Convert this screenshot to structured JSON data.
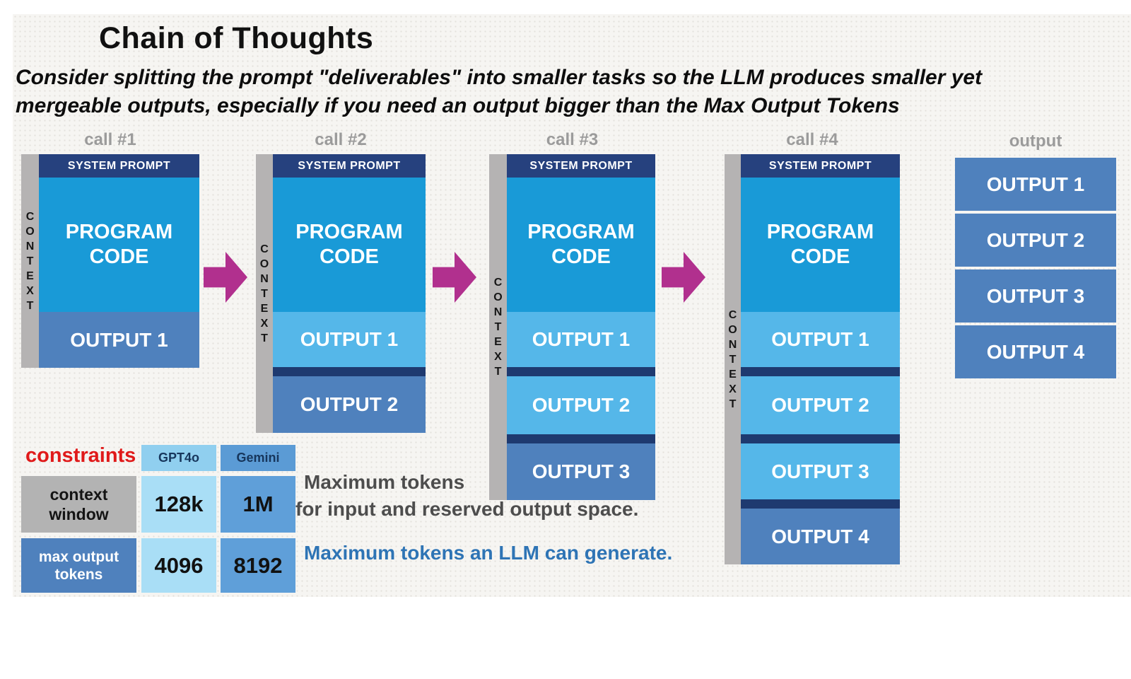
{
  "title": "Chain of Thoughts",
  "subtitle_line1": "Consider splitting the prompt \"deliverables\" into smaller tasks so the LLM produces smaller yet",
  "subtitle_line2": "mergeable outputs, especially if you need an output bigger than the Max Output Tokens",
  "calls": [
    {
      "label": "call #1",
      "context_label": "CONTEXT",
      "system_prompt": "SYSTEM PROMPT",
      "program_code": "PROGRAM CODE",
      "outputs": [
        {
          "label": "OUTPUT 1",
          "in_context": false
        }
      ]
    },
    {
      "label": "call #2",
      "context_label": "CONTEXT",
      "system_prompt": "SYSTEM PROMPT",
      "program_code": "PROGRAM CODE",
      "outputs": [
        {
          "label": "OUTPUT 1",
          "in_context": true
        },
        {
          "label": "OUTPUT 2",
          "in_context": false
        }
      ]
    },
    {
      "label": "call #3",
      "context_label": "CONTEXT",
      "system_prompt": "SYSTEM PROMPT",
      "program_code": "PROGRAM CODE",
      "outputs": [
        {
          "label": "OUTPUT 1",
          "in_context": true
        },
        {
          "label": "OUTPUT 2",
          "in_context": true
        },
        {
          "label": "OUTPUT 3",
          "in_context": false
        }
      ]
    },
    {
      "label": "call #4",
      "context_label": "CONTEXT",
      "system_prompt": "SYSTEM PROMPT",
      "program_code": "PROGRAM CODE",
      "outputs": [
        {
          "label": "OUTPUT 1",
          "in_context": true
        },
        {
          "label": "OUTPUT 2",
          "in_context": true
        },
        {
          "label": "OUTPUT 3",
          "in_context": true
        },
        {
          "label": "OUTPUT 4",
          "in_context": false
        }
      ]
    }
  ],
  "output_column": {
    "label": "output",
    "items": [
      "OUTPUT 1",
      "OUTPUT 2",
      "OUTPUT 3",
      "OUTPUT 4"
    ]
  },
  "constraints_table": {
    "title": "constraints",
    "columns": [
      "GPT4o",
      "Gemini"
    ],
    "rows": [
      {
        "label": "context window",
        "values": [
          "128k",
          "1M"
        ]
      },
      {
        "label": "max output tokens",
        "values": [
          "4096",
          "8192"
        ]
      }
    ]
  },
  "notes": {
    "context_note_line1": "Maximum tokens",
    "context_note_line2": "for input and reserved output space.",
    "output_note": "Maximum tokens an LLM can generate."
  },
  "colors": {
    "program_blue": "#199ad7",
    "prior_output_blue": "#55b7e9",
    "new_output_blue": "#4f81bd",
    "navy": "#26417e",
    "context_gray": "#b5b3b3",
    "arrow_magenta": "#b1308e",
    "constraints_red": "#e01a1a",
    "note_blue": "#2e74b5"
  }
}
